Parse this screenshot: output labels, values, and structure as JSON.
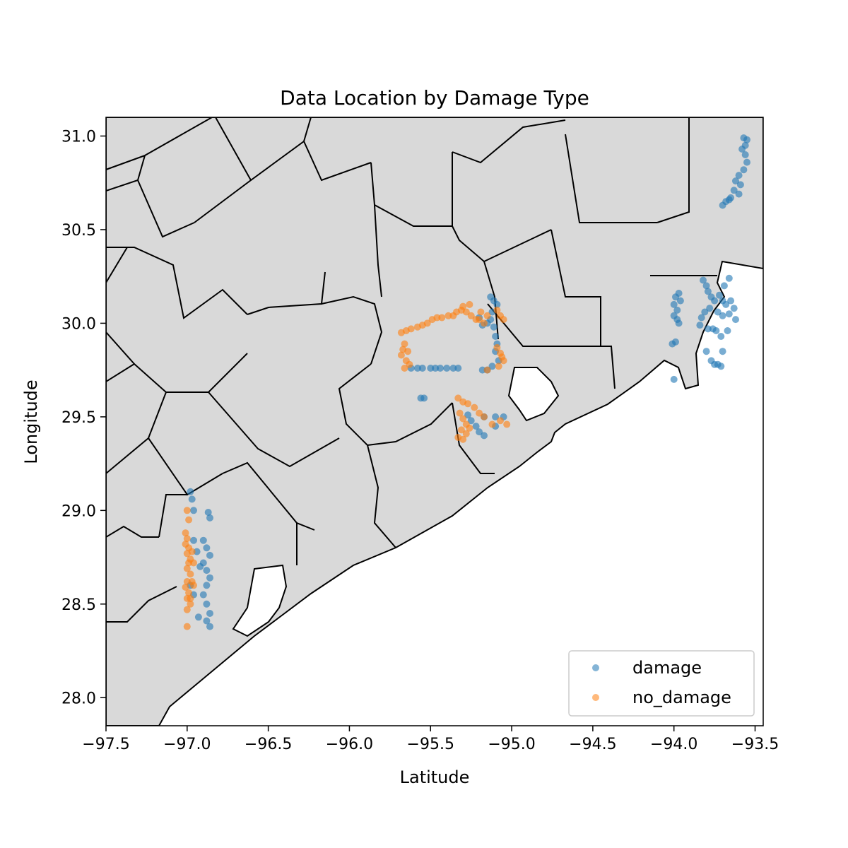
{
  "chart_data": {
    "type": "scatter",
    "title": "Data Location by Damage Type",
    "xlabel": "Latitude",
    "ylabel": "Longitude",
    "xlim": [
      -97.5,
      -93.45
    ],
    "ylim": [
      27.85,
      31.1
    ],
    "xticks": [
      -97.5,
      -97.0,
      -96.5,
      -96.0,
      -95.5,
      -95.0,
      -94.5,
      -94.0,
      -93.5
    ],
    "xtick_labels": [
      "−97.5",
      "−97.0",
      "−96.5",
      "−96.0",
      "−95.5",
      "−95.0",
      "−94.5",
      "−94.0",
      "−93.5"
    ],
    "yticks": [
      28.0,
      28.5,
      29.0,
      29.5,
      30.0,
      30.5,
      31.0
    ],
    "ytick_labels": [
      "28.0",
      "28.5",
      "29.0",
      "29.5",
      "30.0",
      "30.5",
      "31.0"
    ],
    "grid": false,
    "legend_position": "lower-right",
    "background": "map of Texas Gulf Coast counties (gray fill, black borders)",
    "colors": {
      "damage": "#1f77b4",
      "no_damage": "#ff7f0e",
      "land": "#d9d9d9",
      "border": "#000000"
    },
    "series": [
      {
        "name": "damage",
        "points": [
          [
            -93.57,
            30.99
          ],
          [
            -93.55,
            30.98
          ],
          [
            -93.56,
            30.95
          ],
          [
            -93.58,
            30.93
          ],
          [
            -93.56,
            30.9
          ],
          [
            -93.55,
            30.86
          ],
          [
            -93.57,
            30.82
          ],
          [
            -93.6,
            30.79
          ],
          [
            -93.62,
            30.76
          ],
          [
            -93.59,
            30.74
          ],
          [
            -93.63,
            30.71
          ],
          [
            -93.6,
            30.69
          ],
          [
            -93.65,
            30.67
          ],
          [
            -93.68,
            30.65
          ],
          [
            -93.7,
            30.63
          ],
          [
            -93.66,
            30.66
          ],
          [
            -93.97,
            30.16
          ],
          [
            -93.99,
            30.14
          ],
          [
            -93.96,
            30.12
          ],
          [
            -94.0,
            30.1
          ],
          [
            -93.98,
            30.07
          ],
          [
            -94.0,
            30.04
          ],
          [
            -93.98,
            30.02
          ],
          [
            -93.97,
            30.0
          ],
          [
            -93.99,
            29.9
          ],
          [
            -94.01,
            29.89
          ],
          [
            -94.0,
            29.7
          ],
          [
            -93.82,
            30.23
          ],
          [
            -93.8,
            30.2
          ],
          [
            -93.79,
            30.17
          ],
          [
            -93.77,
            30.14
          ],
          [
            -93.75,
            30.12
          ],
          [
            -93.72,
            30.15
          ],
          [
            -93.7,
            30.12
          ],
          [
            -93.68,
            30.1
          ],
          [
            -93.65,
            30.12
          ],
          [
            -93.63,
            30.08
          ],
          [
            -93.66,
            30.05
          ],
          [
            -93.7,
            30.04
          ],
          [
            -93.73,
            30.06
          ],
          [
            -93.78,
            30.08
          ],
          [
            -93.81,
            30.06
          ],
          [
            -93.83,
            30.03
          ],
          [
            -93.84,
            29.99
          ],
          [
            -93.79,
            29.97
          ],
          [
            -93.74,
            29.96
          ],
          [
            -93.71,
            29.93
          ],
          [
            -93.67,
            29.96
          ],
          [
            -93.62,
            30.02
          ],
          [
            -93.69,
            30.2
          ],
          [
            -93.66,
            30.24
          ],
          [
            -93.76,
            29.97
          ],
          [
            -93.71,
            29.77
          ],
          [
            -93.73,
            29.78
          ],
          [
            -93.75,
            29.78
          ],
          [
            -93.77,
            29.8
          ],
          [
            -93.7,
            29.85
          ],
          [
            -93.8,
            29.85
          ],
          [
            -95.62,
            29.76
          ],
          [
            -95.58,
            29.76
          ],
          [
            -95.55,
            29.76
          ],
          [
            -95.5,
            29.76
          ],
          [
            -95.47,
            29.76
          ],
          [
            -95.44,
            29.76
          ],
          [
            -95.4,
            29.76
          ],
          [
            -95.36,
            29.76
          ],
          [
            -95.33,
            29.76
          ],
          [
            -95.56,
            29.6
          ],
          [
            -95.54,
            29.6
          ],
          [
            -95.13,
            30.14
          ],
          [
            -95.11,
            30.12
          ],
          [
            -95.09,
            30.1
          ],
          [
            -95.12,
            30.06
          ],
          [
            -95.13,
            30.02
          ],
          [
            -95.15,
            30.0
          ],
          [
            -95.11,
            29.98
          ],
          [
            -95.1,
            29.93
          ],
          [
            -95.09,
            29.89
          ],
          [
            -95.1,
            29.85
          ],
          [
            -95.08,
            29.8
          ],
          [
            -95.12,
            29.77
          ],
          [
            -95.15,
            29.75
          ],
          [
            -95.18,
            29.75
          ],
          [
            -95.2,
            30.03
          ],
          [
            -95.18,
            29.99
          ],
          [
            -95.27,
            29.51
          ],
          [
            -95.25,
            29.48
          ],
          [
            -95.22,
            29.45
          ],
          [
            -95.2,
            29.42
          ],
          [
            -95.17,
            29.4
          ],
          [
            -95.1,
            29.45
          ],
          [
            -95.05,
            29.5
          ],
          [
            -95.1,
            29.5
          ],
          [
            -95.17,
            29.5
          ],
          [
            -96.98,
            29.1
          ],
          [
            -96.97,
            29.06
          ],
          [
            -96.96,
            29.0
          ],
          [
            -96.87,
            28.99
          ],
          [
            -96.86,
            28.96
          ],
          [
            -96.9,
            28.84
          ],
          [
            -96.88,
            28.8
          ],
          [
            -96.86,
            28.76
          ],
          [
            -96.9,
            28.72
          ],
          [
            -96.88,
            28.68
          ],
          [
            -96.86,
            28.64
          ],
          [
            -96.88,
            28.6
          ],
          [
            -96.9,
            28.55
          ],
          [
            -96.88,
            28.5
          ],
          [
            -96.86,
            28.45
          ],
          [
            -96.88,
            28.41
          ],
          [
            -96.86,
            28.38
          ],
          [
            -96.93,
            28.43
          ],
          [
            -96.96,
            28.55
          ],
          [
            -96.98,
            28.6
          ],
          [
            -96.92,
            28.7
          ],
          [
            -96.94,
            28.78
          ],
          [
            -96.96,
            28.84
          ]
        ]
      },
      {
        "name": "no_damage",
        "points": [
          [
            -95.68,
            29.95
          ],
          [
            -95.65,
            29.96
          ],
          [
            -95.62,
            29.97
          ],
          [
            -95.58,
            29.98
          ],
          [
            -95.55,
            29.99
          ],
          [
            -95.52,
            30.0
          ],
          [
            -95.49,
            30.02
          ],
          [
            -95.46,
            30.03
          ],
          [
            -95.43,
            30.03
          ],
          [
            -95.39,
            30.04
          ],
          [
            -95.36,
            30.04
          ],
          [
            -95.34,
            30.06
          ],
          [
            -95.31,
            30.07
          ],
          [
            -95.28,
            30.06
          ],
          [
            -95.25,
            30.04
          ],
          [
            -95.22,
            30.02
          ],
          [
            -95.2,
            30.02
          ],
          [
            -95.26,
            30.1
          ],
          [
            -95.3,
            30.09
          ],
          [
            -95.19,
            30.06
          ],
          [
            -95.15,
            30.04
          ],
          [
            -95.17,
            30.0
          ],
          [
            -95.66,
            29.89
          ],
          [
            -95.67,
            29.86
          ],
          [
            -95.68,
            29.83
          ],
          [
            -95.65,
            29.8
          ],
          [
            -95.63,
            29.78
          ],
          [
            -95.66,
            29.76
          ],
          [
            -95.64,
            29.85
          ],
          [
            -95.09,
            30.07
          ],
          [
            -95.07,
            30.04
          ],
          [
            -95.05,
            30.02
          ],
          [
            -95.09,
            29.87
          ],
          [
            -95.07,
            29.84
          ],
          [
            -95.05,
            29.8
          ],
          [
            -95.08,
            29.77
          ],
          [
            -95.06,
            29.82
          ],
          [
            -95.15,
            29.75
          ],
          [
            -95.33,
            29.6
          ],
          [
            -95.3,
            29.58
          ],
          [
            -95.27,
            29.57
          ],
          [
            -95.23,
            29.55
          ],
          [
            -95.2,
            29.52
          ],
          [
            -95.17,
            29.5
          ],
          [
            -95.32,
            29.52
          ],
          [
            -95.3,
            29.49
          ],
          [
            -95.28,
            29.46
          ],
          [
            -95.31,
            29.43
          ],
          [
            -95.28,
            29.41
          ],
          [
            -95.3,
            29.38
          ],
          [
            -95.33,
            29.39
          ],
          [
            -95.26,
            29.44
          ],
          [
            -95.12,
            29.46
          ],
          [
            -95.07,
            29.48
          ],
          [
            -95.03,
            29.46
          ],
          [
            -97.01,
            28.88
          ],
          [
            -97.0,
            28.85
          ],
          [
            -97.01,
            28.82
          ],
          [
            -96.99,
            28.8
          ],
          [
            -97.0,
            28.77
          ],
          [
            -96.98,
            28.74
          ],
          [
            -96.99,
            28.72
          ],
          [
            -97.0,
            28.69
          ],
          [
            -96.98,
            28.66
          ],
          [
            -97.0,
            28.62
          ],
          [
            -97.01,
            28.59
          ],
          [
            -96.99,
            28.56
          ],
          [
            -97.0,
            28.53
          ],
          [
            -96.98,
            28.5
          ],
          [
            -97.0,
            28.47
          ],
          [
            -96.97,
            28.78
          ],
          [
            -96.96,
            28.72
          ],
          [
            -96.97,
            28.62
          ],
          [
            -97.0,
            28.38
          ],
          [
            -96.99,
            28.95
          ],
          [
            -97.0,
            29.0
          ],
          [
            -96.98,
            28.53
          ],
          [
            -96.96,
            28.6
          ]
        ]
      }
    ]
  }
}
